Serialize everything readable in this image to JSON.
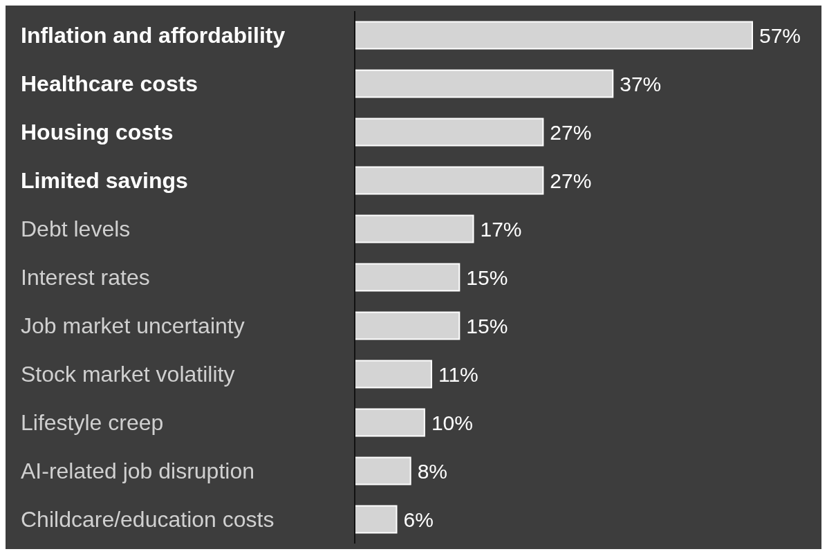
{
  "chart_data": {
    "type": "bar",
    "orientation": "horizontal",
    "categories": [
      "Inflation and affordability",
      "Healthcare costs",
      "Housing costs",
      "Limited savings",
      "Debt levels",
      "Interest rates",
      "Job market uncertainty",
      "Stock market volatility",
      "Lifestyle creep",
      "AI-related job disruption",
      "Childcare/education costs"
    ],
    "values": [
      57,
      37,
      27,
      27,
      17,
      15,
      15,
      11,
      10,
      8,
      6
    ],
    "value_labels": [
      "57%",
      "37%",
      "27%",
      "27%",
      "17%",
      "15%",
      "15%",
      "11%",
      "10%",
      "8%",
      "6%"
    ],
    "color": "#d4d4d4"
  }
}
